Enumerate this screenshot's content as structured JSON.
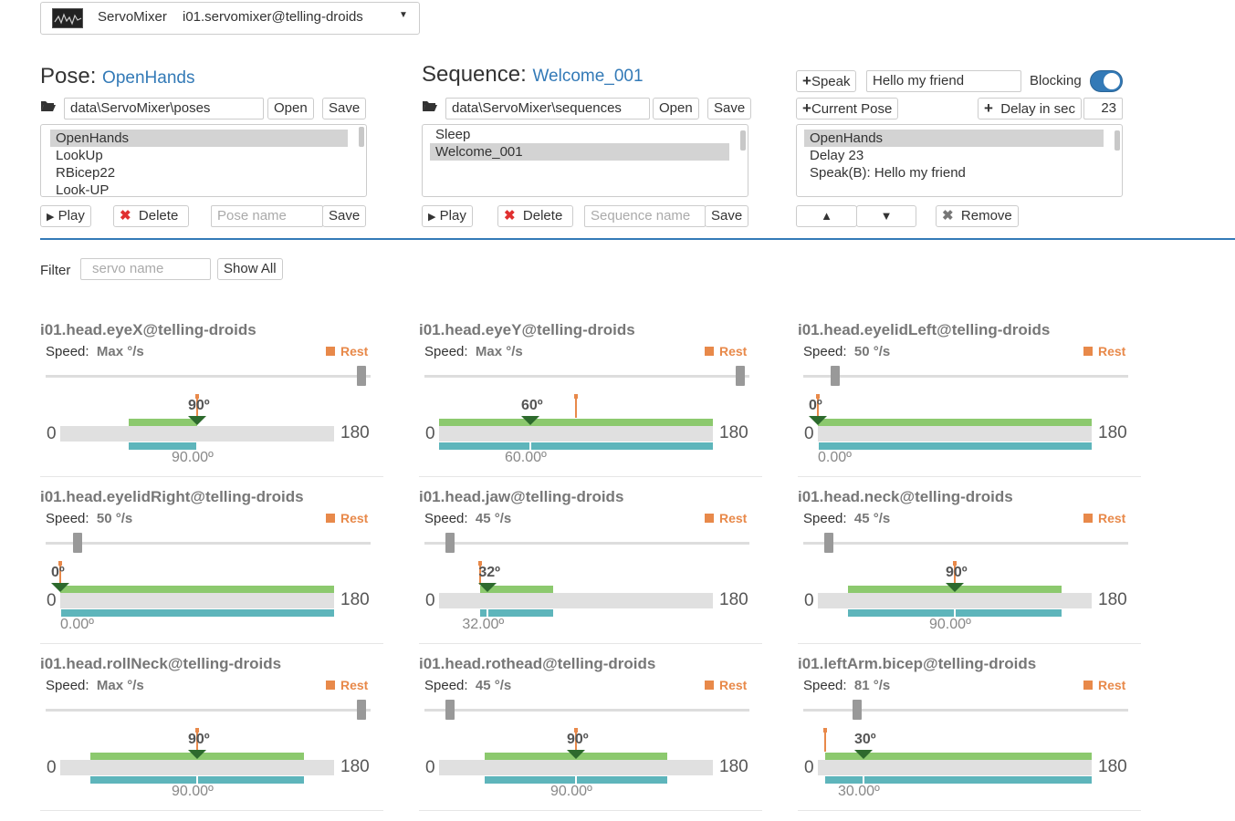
{
  "header": {
    "service_label": "ServoMixer",
    "service_name": "i01.servomixer@telling-droids"
  },
  "pose": {
    "heading": "Pose:",
    "name": "OpenHands",
    "path": "data\\ServoMixer\\poses",
    "open_label": "Open",
    "save_label": "Save",
    "items": [
      "OpenHands",
      "LookUp",
      "RBicep22",
      "Look-UP"
    ],
    "play_label": "Play",
    "delete_label": "Delete",
    "name_placeholder": "Pose name",
    "save2_label": "Save"
  },
  "sequence": {
    "heading": "Sequence:",
    "name": "Welcome_001",
    "path": "data\\ServoMixer\\sequences",
    "open_label": "Open",
    "save_label": "Save",
    "items": [
      "Sleep",
      "Welcome_001"
    ],
    "play_label": "Play",
    "delete_label": "Delete",
    "name_placeholder": "Sequence name",
    "save2_label": "Save"
  },
  "editor": {
    "speak_label": "Speak",
    "speak_text": "Hello my friend",
    "blocking_label": "Blocking",
    "blocking_on": true,
    "current_pose_label": "Current Pose",
    "delay_label": "Delay in sec",
    "delay_value": "23",
    "items": [
      "OpenHands",
      "Delay 23",
      "Speak(B): Hello my friend"
    ],
    "up_icon": "▲",
    "down_icon": "▼",
    "remove_label": "Remove"
  },
  "filter": {
    "label": "Filter",
    "placeholder": "servo name",
    "show_all_label": "Show All"
  },
  "servos": [
    {
      "name": "i01.head.eyeX@telling-droids",
      "speed_label": "Speed:",
      "speed": "Max °/s",
      "speed_frac": 1.0,
      "rest": "Rest",
      "min": "0",
      "max": "180",
      "min_deg": 45,
      "max_deg": 90,
      "rest_deg": 90,
      "target": "90º",
      "pos": "90.00º",
      "target_deg": 90,
      "pos_deg": 90
    },
    {
      "name": "i01.head.eyeY@telling-droids",
      "speed_label": "Speed:",
      "speed": "Max °/s",
      "speed_frac": 1.0,
      "rest": "Rest",
      "min": "0",
      "max": "180",
      "min_deg": 0,
      "max_deg": 180,
      "rest_deg": 90,
      "target": "60º",
      "pos": "60.00º",
      "target_deg": 60,
      "pos_deg": 60
    },
    {
      "name": "i01.head.eyelidLeft@telling-droids",
      "speed_label": "Speed:",
      "speed": "50 °/s",
      "speed_frac": 0.1,
      "rest": "Rest",
      "min": "0",
      "max": "180",
      "min_deg": 0,
      "max_deg": 180,
      "rest_deg": 0,
      "target": "0º",
      "pos": "0.00º",
      "target_deg": 0,
      "pos_deg": 0
    },
    {
      "name": "i01.head.eyelidRight@telling-droids",
      "speed_label": "Speed:",
      "speed": "50 °/s",
      "speed_frac": 0.1,
      "rest": "Rest",
      "min": "0",
      "max": "180",
      "min_deg": 0,
      "max_deg": 180,
      "rest_deg": 0,
      "target": "0º",
      "pos": "0.00º",
      "target_deg": 0,
      "pos_deg": 0
    },
    {
      "name": "i01.head.jaw@telling-droids",
      "speed_label": "Speed:",
      "speed": "45 °/s",
      "speed_frac": 0.08,
      "rest": "Rest",
      "min": "0",
      "max": "180",
      "min_deg": 27,
      "max_deg": 75,
      "rest_deg": 27,
      "target": "32º",
      "pos": "32.00º",
      "target_deg": 32,
      "pos_deg": 32
    },
    {
      "name": "i01.head.neck@telling-droids",
      "speed_label": "Speed:",
      "speed": "45 °/s",
      "speed_frac": 0.08,
      "rest": "Rest",
      "min": "0",
      "max": "180",
      "min_deg": 20,
      "max_deg": 160,
      "rest_deg": 90,
      "target": "90º",
      "pos": "90.00º",
      "target_deg": 90,
      "pos_deg": 90
    },
    {
      "name": "i01.head.rollNeck@telling-droids",
      "speed_label": "Speed:",
      "speed": "Max °/s",
      "speed_frac": 1.0,
      "rest": "Rest",
      "min": "0",
      "max": "180",
      "min_deg": 20,
      "max_deg": 160,
      "rest_deg": 90,
      "target": "90º",
      "pos": "90.00º",
      "target_deg": 90,
      "pos_deg": 90
    },
    {
      "name": "i01.head.rothead@telling-droids",
      "speed_label": "Speed:",
      "speed": "45 °/s",
      "speed_frac": 0.08,
      "rest": "Rest",
      "min": "0",
      "max": "180",
      "min_deg": 30,
      "max_deg": 150,
      "rest_deg": 90,
      "target": "90º",
      "pos": "90.00º",
      "target_deg": 90,
      "pos_deg": 90
    },
    {
      "name": "i01.leftArm.bicep@telling-droids",
      "speed_label": "Speed:",
      "speed": "81 °/s",
      "speed_frac": 0.17,
      "rest": "Rest",
      "min": "0",
      "max": "180",
      "min_deg": 5,
      "max_deg": 180,
      "rest_deg": 5,
      "target": "30º",
      "pos": "30.00º",
      "target_deg": 30,
      "pos_deg": 30
    }
  ],
  "colors": {
    "accent": "#337ab7",
    "green": "#8cc96e",
    "teal": "#5eb5bb",
    "orange": "#e8894a",
    "pointer": "#2d6a2d"
  }
}
